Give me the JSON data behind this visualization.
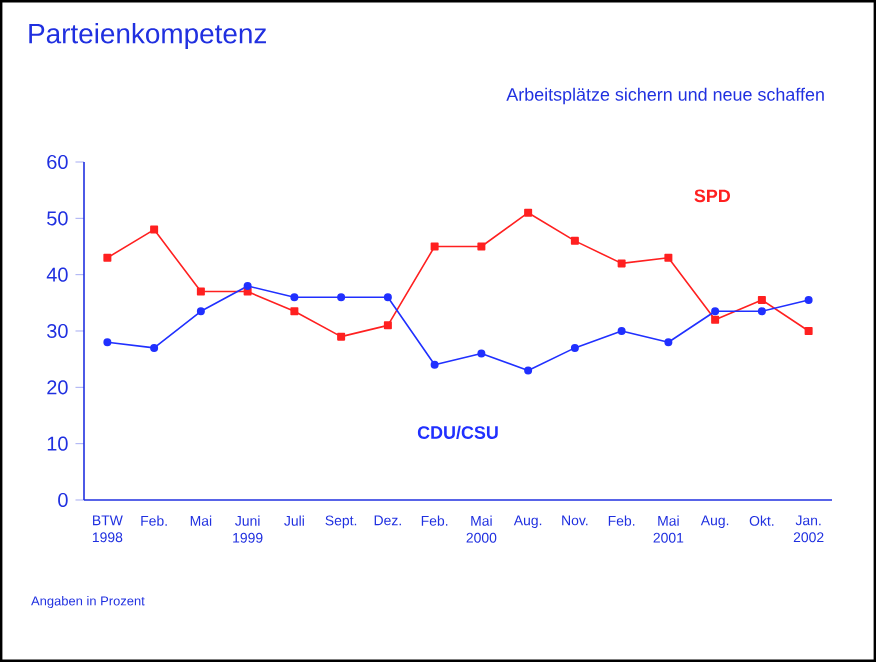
{
  "chart_data": {
    "type": "line",
    "title": "Parteienkompetenz",
    "subtitle": "Arbeitsplätze sichern und neue schaffen",
    "categories": [
      "BTW 1998",
      "Feb.",
      "Mai",
      "Juni 1999",
      "Juli",
      "Sept.",
      "Dez.",
      "Feb.",
      "Mai 2000",
      "Aug.",
      "Nov.",
      "Feb.",
      "Mai 2001",
      "Aug.",
      "Okt.",
      "Jan. 2002"
    ],
    "series": [
      {
        "name": "SPD",
        "color": "#ff2020",
        "marker": "square",
        "values": [
          43,
          48,
          37,
          37,
          33.5,
          29,
          31,
          45,
          45,
          51,
          46,
          42,
          43,
          32,
          35.5,
          30
        ]
      },
      {
        "name": "CDU/CSU",
        "color": "#2030ff",
        "marker": "circle",
        "values": [
          28,
          27,
          33.5,
          38,
          36,
          36,
          36,
          24,
          26,
          23,
          27,
          30,
          28,
          33.5,
          33.5,
          35.5
        ]
      }
    ],
    "ylim": [
      0,
      60
    ],
    "yticks": [
      0,
      10,
      20,
      30,
      40,
      50,
      60
    ],
    "grid": false,
    "legend": false,
    "annotations": [
      "Angaben in Prozent"
    ]
  }
}
